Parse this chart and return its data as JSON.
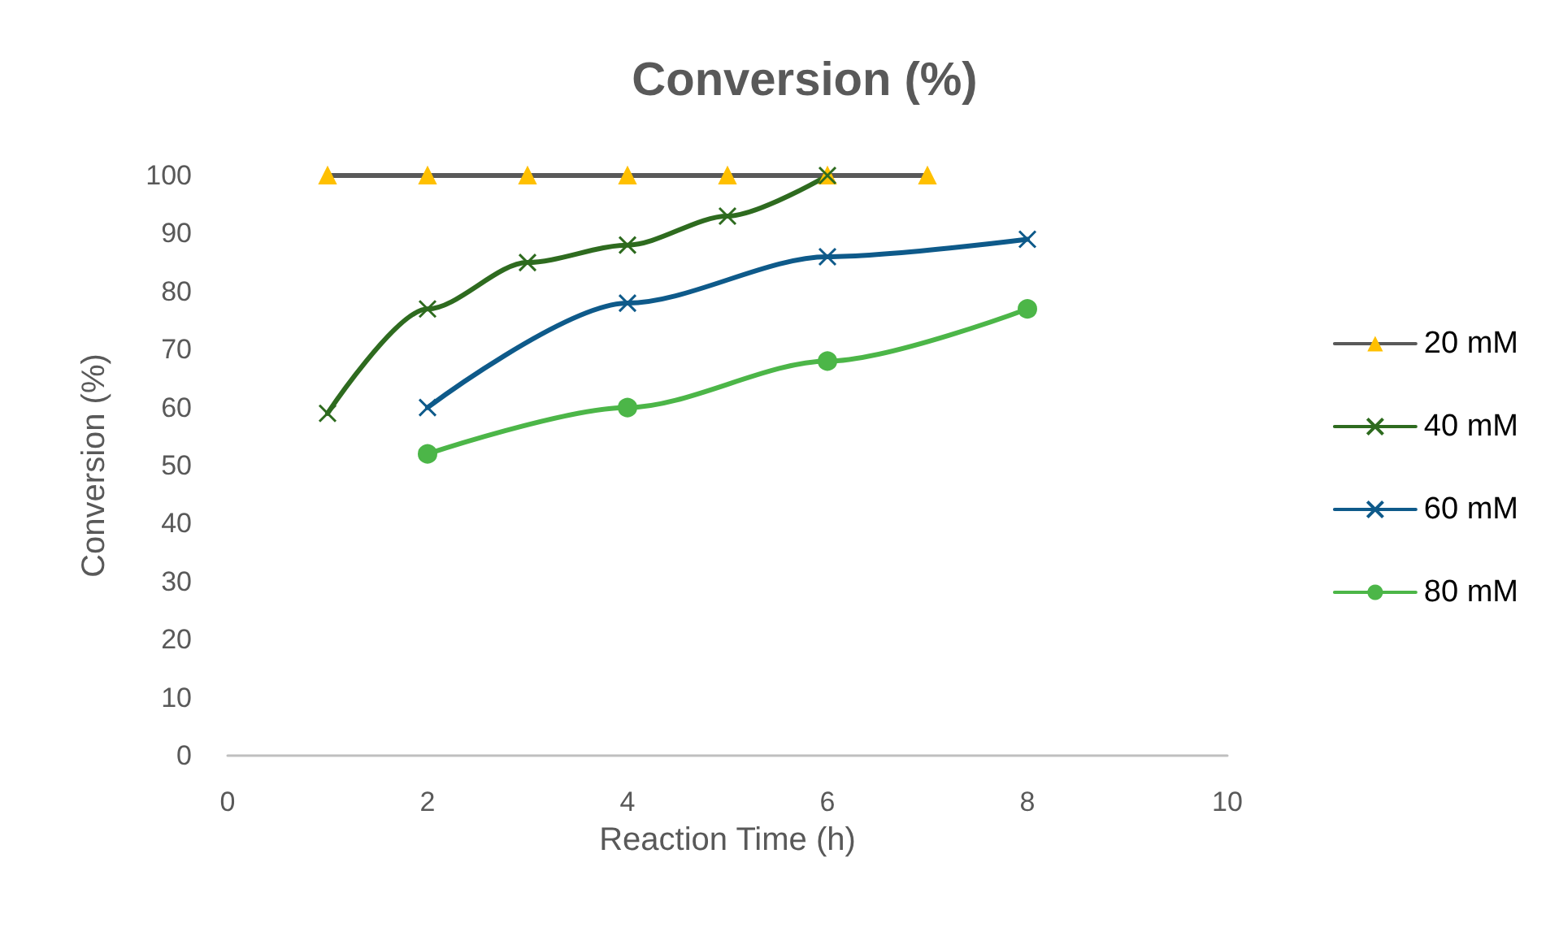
{
  "chart_data": {
    "type": "line",
    "title": "Conversion (%)",
    "xlabel": "Reaction Time (h)",
    "ylabel": "Conversion (%)",
    "xlim": [
      0,
      10
    ],
    "xticks": [
      0,
      2,
      4,
      6,
      8,
      10
    ],
    "ylim": [
      0,
      100
    ],
    "yticks": [
      0,
      10,
      20,
      30,
      40,
      50,
      60,
      70,
      80,
      90,
      100
    ],
    "grid": false,
    "legend": "right",
    "series": [
      {
        "name": "20 mM",
        "color": "#595959",
        "marker": "triangle",
        "x": [
          1,
          2,
          3,
          4,
          5,
          6,
          7
        ],
        "values": [
          100,
          100,
          100,
          100,
          100,
          100,
          100
        ]
      },
      {
        "name": "40 mM",
        "color": "#2e6b1f",
        "marker": "cross",
        "x": [
          1,
          2,
          3,
          4,
          5,
          6
        ],
        "values": [
          59,
          77,
          85,
          88,
          93,
          100
        ]
      },
      {
        "name": "60 mM",
        "color": "#0e5a8a",
        "marker": "cross",
        "x": [
          2,
          4,
          6,
          8
        ],
        "values": [
          60,
          78,
          86,
          89
        ]
      },
      {
        "name": "80 mM",
        "color": "#4cb648",
        "marker": "circle",
        "x": [
          2,
          4,
          6,
          8
        ],
        "values": [
          52,
          60,
          68,
          77
        ]
      }
    ]
  }
}
